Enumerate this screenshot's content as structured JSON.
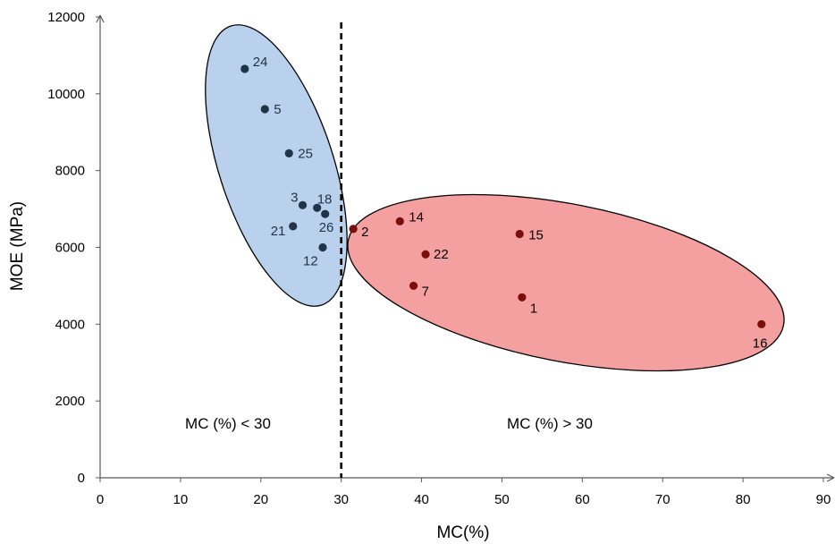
{
  "chart_data": {
    "type": "scatter",
    "title": "",
    "xlabel": "MC(%)",
    "ylabel": "MOE (MPa)",
    "xlim": [
      0,
      90
    ],
    "ylim": [
      0,
      12000
    ],
    "x_ticks": [
      "0",
      "10",
      "20",
      "30",
      "40",
      "50",
      "60",
      "70",
      "80",
      "90"
    ],
    "y_ticks": [
      "0",
      "2000",
      "4000",
      "6000",
      "8000",
      "10000",
      "12000"
    ],
    "grid": false,
    "threshold_x": 30,
    "region_labels": {
      "left": "MC (%) < 30",
      "right": "MC (%) > 30"
    },
    "groups": [
      {
        "fill": "#b9d1ec",
        "point_color": "#1f3349",
        "label_color": "#1f3349",
        "points": [
          {
            "label": "24",
            "x": 18.0,
            "y": 10650
          },
          {
            "label": "5",
            "x": 20.5,
            "y": 9600
          },
          {
            "label": "25",
            "x": 23.5,
            "y": 8450
          },
          {
            "label": "3",
            "x": 25.2,
            "y": 7100
          },
          {
            "label": "18",
            "x": 27.0,
            "y": 7030
          },
          {
            "label": "26",
            "x": 28.0,
            "y": 6870
          },
          {
            "label": "21",
            "x": 24.0,
            "y": 6550
          },
          {
            "label": "12",
            "x": 27.7,
            "y": 6000
          }
        ]
      },
      {
        "fill": "#f4a0a0",
        "point_color": "#7a0e0e",
        "label_color": "#000000",
        "points": [
          {
            "label": "2",
            "x": 31.5,
            "y": 6480
          },
          {
            "label": "14",
            "x": 37.3,
            "y": 6680
          },
          {
            "label": "22",
            "x": 40.5,
            "y": 5820
          },
          {
            "label": "15",
            "x": 52.2,
            "y": 6350
          },
          {
            "label": "7",
            "x": 39.0,
            "y": 5000
          },
          {
            "label": "1",
            "x": 52.5,
            "y": 4700
          },
          {
            "label": "16",
            "x": 82.3,
            "y": 4000
          }
        ]
      }
    ]
  }
}
